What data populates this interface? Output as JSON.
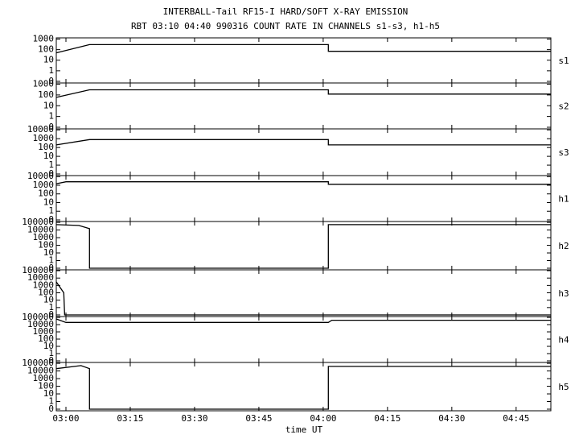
{
  "header": {
    "title": "INTERBALL-Tail RF15-I HARD/SOFT X-RAY EMISSION",
    "subtitle": "RBT 03:10 04:40 990316  COUNT RATE IN CHANNELS s1-s3, h1-h5"
  },
  "x_axis": {
    "label": "time UT",
    "xlim": [
      -2.25,
      113.1
    ],
    "xticks": [
      {
        "value": 0,
        "label": "03:00"
      },
      {
        "value": 15,
        "label": "03:15"
      },
      {
        "value": 30,
        "label": "03:30"
      },
      {
        "value": 45,
        "label": "03:45"
      },
      {
        "value": 60,
        "label": "04:00"
      },
      {
        "value": 75,
        "label": "04:15"
      },
      {
        "value": 90,
        "label": "04:30"
      },
      {
        "value": 105,
        "label": "04:45"
      }
    ]
  },
  "chart_data": [
    {
      "type": "line",
      "label": "s1",
      "log": true,
      "color": "#000000",
      "ylim": [
        0,
        1300
      ],
      "yticks": [
        1000,
        100,
        10,
        1,
        0
      ],
      "x": [
        -2.25,
        5.5,
        61.2,
        61.2,
        113.1
      ],
      "values": [
        50,
        300,
        300,
        70,
        70
      ]
    },
    {
      "type": "line",
      "label": "s2",
      "log": true,
      "color": "#000000",
      "ylim": [
        0,
        1300
      ],
      "yticks": [
        1000,
        100,
        10,
        1,
        0
      ],
      "x": [
        -2.25,
        5.5,
        61.2,
        61.2,
        113.1
      ],
      "values": [
        60,
        300,
        300,
        120,
        120
      ]
    },
    {
      "type": "line",
      "label": "s3",
      "log": true,
      "color": "#000000",
      "ylim": [
        0,
        13000
      ],
      "yticks": [
        10000,
        1000,
        100,
        10,
        1,
        0
      ],
      "x": [
        -2.25,
        5.5,
        61.2,
        61.2,
        113.1
      ],
      "values": [
        200,
        800,
        800,
        200,
        200
      ]
    },
    {
      "type": "line",
      "label": "h1",
      "log": true,
      "color": "#000000",
      "ylim": [
        0,
        13000
      ],
      "yticks": [
        10000,
        1000,
        100,
        10,
        1,
        0
      ],
      "x": [
        -2.25,
        0,
        61.2,
        61.2,
        113.1
      ],
      "values": [
        1500,
        2500,
        2500,
        1300,
        1300
      ]
    },
    {
      "type": "line",
      "label": "h2",
      "log": true,
      "color": "#000000",
      "ylim": [
        0,
        130000
      ],
      "yticks": [
        100000,
        10000,
        1000,
        100,
        10,
        1,
        0
      ],
      "x": [
        -2.25,
        3,
        5.5,
        5.5,
        61.2,
        61.2,
        113.1
      ],
      "values": [
        50000,
        40000,
        15000,
        0,
        0,
        50000,
        50000
      ]
    },
    {
      "type": "line",
      "label": "h3",
      "log": true,
      "color": "#000000",
      "ylim": [
        0,
        130000
      ],
      "yticks": [
        100000,
        10000,
        1000,
        100,
        10,
        1,
        0
      ],
      "x": [
        -2.25,
        -0.5,
        -0.3,
        113.1
      ],
      "values": [
        3000,
        100,
        0,
        0
      ]
    },
    {
      "type": "line",
      "label": "h4",
      "log": true,
      "color": "#000000",
      "ylim": [
        0,
        130000
      ],
      "yticks": [
        100000,
        10000,
        1000,
        100,
        10,
        1,
        0
      ],
      "x": [
        -2.25,
        0,
        61.2,
        62,
        113.1
      ],
      "values": [
        60000,
        20000,
        20000,
        40000,
        40000
      ]
    },
    {
      "type": "line",
      "label": "h5",
      "log": true,
      "color": "#000000",
      "ylim": [
        0,
        130000
      ],
      "yticks": [
        100000,
        10000,
        1000,
        100,
        10,
        1,
        0
      ],
      "x": [
        -2.25,
        3.5,
        5.5,
        5.5,
        61.2,
        61.2,
        113.1
      ],
      "values": [
        20000,
        50000,
        20000,
        0,
        0,
        40000,
        40000
      ]
    }
  ]
}
